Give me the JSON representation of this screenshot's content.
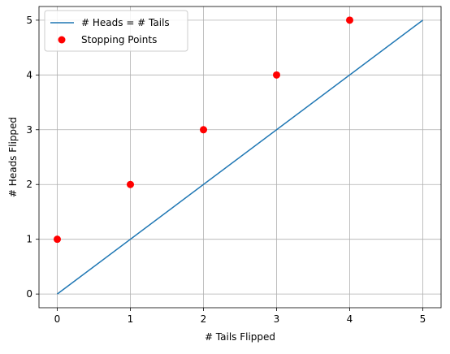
{
  "chart_data": {
    "type": "line",
    "title": "",
    "xlabel": "# Tails Flipped",
    "ylabel": "# Heads Flipped",
    "xlim": [
      -0.25,
      5.25
    ],
    "ylim": [
      -0.25,
      5.25
    ],
    "xticks": [
      0,
      1,
      2,
      3,
      4,
      5
    ],
    "yticks": [
      0,
      1,
      2,
      3,
      4,
      5
    ],
    "grid": true,
    "legend_position": "top-left",
    "series": [
      {
        "name": "# Heads = # Tails",
        "kind": "line",
        "color": "#1f77b4",
        "x": [
          0,
          5
        ],
        "y": [
          0,
          5
        ]
      },
      {
        "name": "Stopping Points",
        "kind": "scatter",
        "color": "#ff0000",
        "x": [
          0,
          1,
          2,
          3,
          4
        ],
        "y": [
          1,
          2,
          3,
          4,
          5
        ]
      }
    ]
  }
}
